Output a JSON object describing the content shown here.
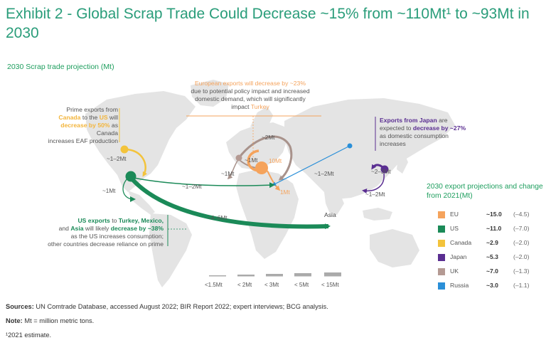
{
  "title": "Exhibit 2 - Global Scrap Trade Could Decrease ~15% from ~110Mt¹ to ~93Mt in 2030",
  "subtitle": "2030 Scrap trade projection (Mt)",
  "annotations": {
    "canada": {
      "p1": "Prime exports from",
      "p2a": "Canada",
      "p2b": " to the ",
      "p2c": "US",
      "p2d": " will",
      "p3a": "decrease by 50%",
      "p3b": " as Canada",
      "p4": "increases EAF production"
    },
    "europe": {
      "line1": "European exports will decrease by ~23%",
      "line2": "due to potential policy impact and increased",
      "line3": "domestic demand, which will significantly",
      "line4a": "impact ",
      "line4b": "Turkey"
    },
    "japan": {
      "line1a": "Exports from Japan",
      "line1b": " are",
      "line2a": "expected to ",
      "line2b": "decrease by ~27%",
      "line3": "as domestic consumption",
      "line4": "increases"
    },
    "us": {
      "line1a": "US exports",
      "line1b": " to ",
      "line1c": "Turkey, Mexico,",
      "line2a": "and ",
      "line2b": "Asia",
      "line2c": " will likely ",
      "line2d": "decrease by ~38%",
      "line3": "as the US increases consumption;",
      "line4": "other countries decrease reliance on prime"
    }
  },
  "flows": {
    "ca_us": "~1–2Mt",
    "eu_uk_top": "~2Mt",
    "uk_eu": "~1Mt",
    "uk_left": "~1Mt",
    "eu_internal": "10Mt",
    "eu_turkey": "1Mt",
    "russia": "~1–2Mt",
    "japan_top": "~2–3Mt",
    "japan_bottom": "~1–2Mt",
    "us_mexico": "~1Mt",
    "us_turkey": "~1–2Mt",
    "us_asia": "~4–6Mt",
    "asia": "Asia"
  },
  "legend": {
    "title": "2030 export projections and change from 2021(Mt)",
    "items": [
      {
        "name": "EU",
        "value": "~15.0",
        "change": "(–4.5)",
        "color": "#f5a35c"
      },
      {
        "name": "US",
        "value": "~11.0",
        "change": "(–7.0)",
        "color": "#1b8a58"
      },
      {
        "name": "Canada",
        "value": "~2.9",
        "change": "(–2.0)",
        "color": "#f3c33b"
      },
      {
        "name": "Japan",
        "value": "~5.3",
        "change": "(–2.0)",
        "color": "#5a2e91"
      },
      {
        "name": "UK",
        "value": "~7.0",
        "change": "(–1.3)",
        "color": "#b49a93"
      },
      {
        "name": "Russia",
        "value": "~3.0",
        "change": "(–1.1)",
        "color": "#2a8fd8"
      }
    ]
  },
  "size_scale": [
    "<1.5Mt",
    "< 2Mt",
    "< 3Mt",
    "< 5Mt",
    "< 15Mt"
  ],
  "footer": {
    "sources_label": "Sources:",
    "sources": " UN Comtrade Database, accessed August 2022; BIR Report 2022; expert interviews; BCG analysis.",
    "note_label": "Note:",
    "note": " Mt = million metric tons.",
    "footnote": "¹2021 estimate."
  }
}
